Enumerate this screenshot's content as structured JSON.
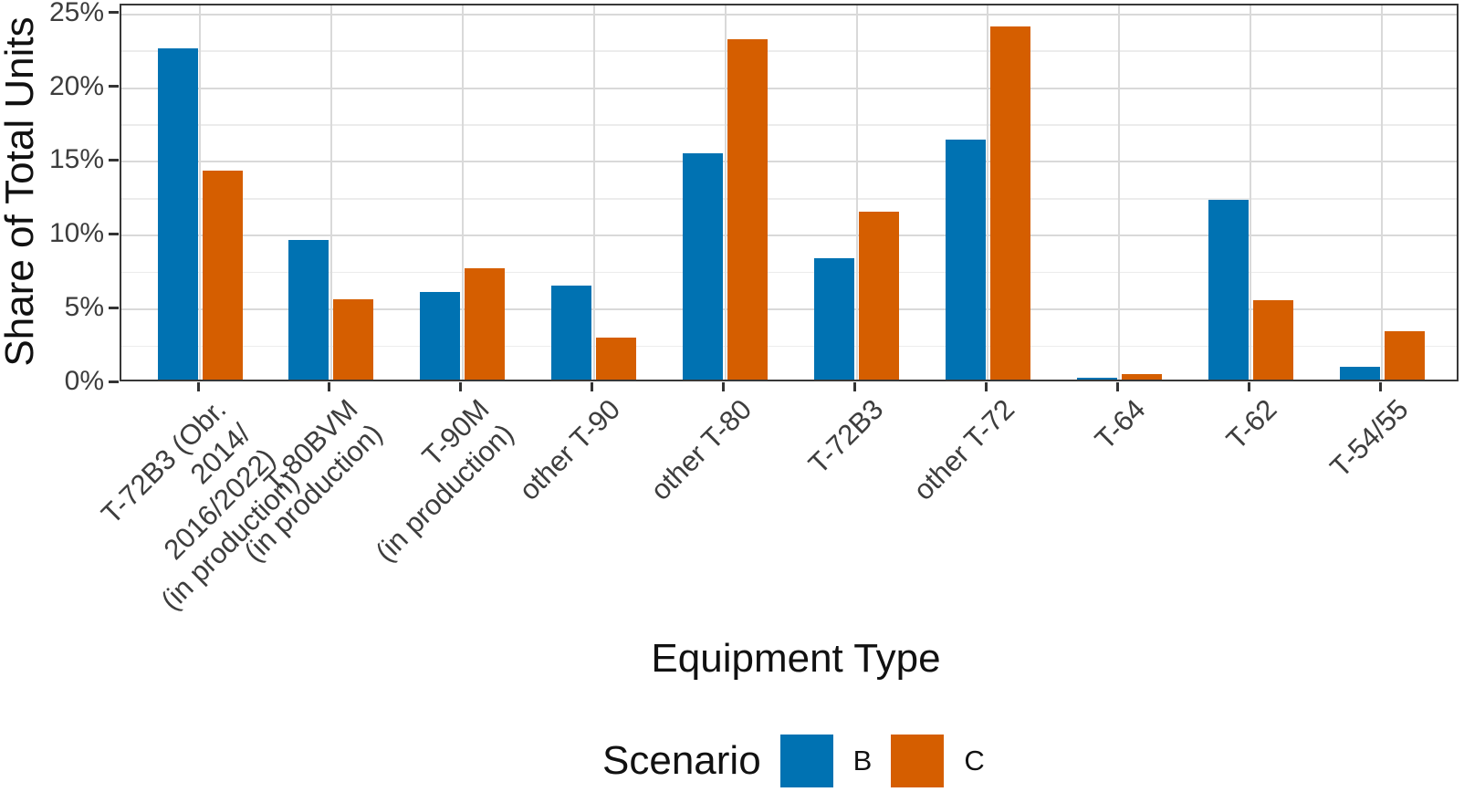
{
  "chart_data": {
    "type": "bar",
    "title": "",
    "xlabel": "Equipment Type",
    "ylabel": "Share of Total Units",
    "legend_title": "Scenario",
    "legend_position": "bottom",
    "grid": true,
    "ylim": [
      0,
      25.6
    ],
    "y_ticks": [
      {
        "value": 0,
        "label": "0%"
      },
      {
        "value": 5,
        "label": "5%"
      },
      {
        "value": 10,
        "label": "10%"
      },
      {
        "value": 15,
        "label": "15%"
      },
      {
        "value": 20,
        "label": "20%"
      },
      {
        "value": 25,
        "label": "25%"
      }
    ],
    "y_minor_ticks": [
      2.5,
      7.5,
      12.5,
      17.5,
      22.5
    ],
    "categories": [
      "T-72B3 (Obr. 2014/\n2016/2022)\n(in production)",
      "T-80BVM\n(in production)",
      "T-90M\n(in production)",
      "other T-90",
      "other T-80",
      "T-72B3",
      "other T-72",
      "T-64",
      "T-62",
      "T-54/55"
    ],
    "series": [
      {
        "name": "B",
        "color": "#0072B2",
        "values": [
          22.7,
          9.7,
          6.2,
          6.6,
          15.6,
          8.5,
          16.5,
          0.4,
          12.4,
          1.1
        ]
      },
      {
        "name": "C",
        "color": "#D55E00",
        "values": [
          14.4,
          5.7,
          7.8,
          3.1,
          23.3,
          11.6,
          24.2,
          0.6,
          5.6,
          3.5
        ]
      }
    ]
  },
  "colors": {
    "scenario_b": "#0072B2",
    "scenario_c": "#D55E00",
    "grid_major": "#d9d9d9",
    "grid_minor": "#ececec",
    "axis_text": "#3d3d3d",
    "panel_border": "#383838"
  }
}
